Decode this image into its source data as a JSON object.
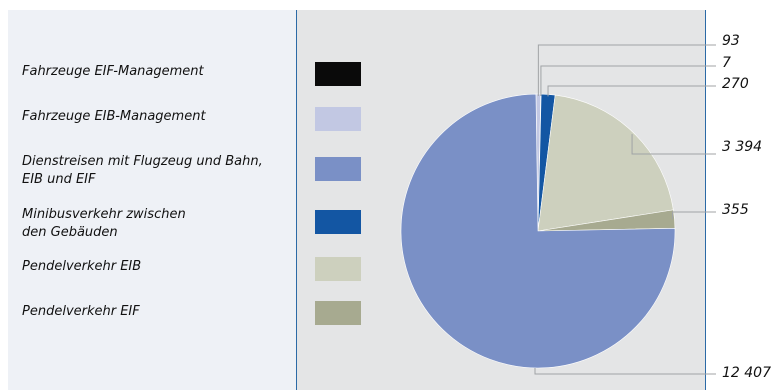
{
  "chart_data": {
    "type": "pie",
    "legend_placement": "left",
    "slices": [
      {
        "label": "Fahrzeuge EIF-Management",
        "value": 7,
        "value_label": "7",
        "color": "#0a0a0a"
      },
      {
        "label": "Fahrzeuge EIB-Management",
        "value": 93,
        "value_label": "93",
        "color": "#c2c8e3"
      },
      {
        "label": "Dienstreisen mit Flugzeug und Bahn,\nEIB und EIF",
        "value": 12407,
        "value_label": "12 407",
        "color": "#7a90c6"
      },
      {
        "label": "Minibusverkehr zwischen\nden Gebäuden",
        "value": 270,
        "value_label": "270",
        "color": "#1356a3"
      },
      {
        "label": "Pendelverkehr EIB",
        "value": 3394,
        "value_label": "3 394",
        "color": "#cdd0be"
      },
      {
        "label": "Pendelverkehr EIF",
        "value": 355,
        "value_label": "355",
        "color": "#a7aa90"
      }
    ],
    "label_order": [
      1,
      0,
      3,
      4,
      5,
      2
    ]
  }
}
